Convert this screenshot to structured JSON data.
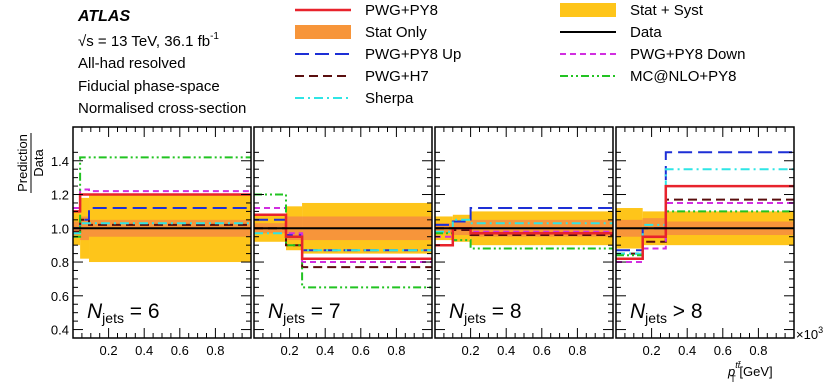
{
  "header": {
    "atlas": "ATLAS",
    "energy": "√s = 13 TeV, 36.1 fb",
    "energy_sup": "-1",
    "lines": [
      "All-had resolved",
      "Fiducial phase-space",
      "Normalised cross-section"
    ]
  },
  "legend": [
    {
      "label": "PWG+PY8",
      "style": "line",
      "color": "#e8232c",
      "dash": "solid",
      "width": 2.5
    },
    {
      "label": "Stat Only",
      "style": "box",
      "color": "#f7953a"
    },
    {
      "label": "PWG+PY8 Up",
      "style": "line",
      "color": "#1d2fd6",
      "dash": "longdash",
      "width": 2
    },
    {
      "label": "PWG+H7",
      "style": "line",
      "color": "#5a0e0e",
      "dash": "dash",
      "width": 2
    },
    {
      "label": "Sherpa",
      "style": "line",
      "color": "#2ee5e5",
      "dash": "dashdot",
      "width": 2
    },
    {
      "label": "Stat + Syst",
      "style": "box",
      "color": "#fec51a"
    },
    {
      "label": "Data",
      "style": "line",
      "color": "#000000",
      "dash": "solid",
      "width": 2
    },
    {
      "label": "PWG+PY8 Down",
      "style": "line",
      "color": "#d12ee0",
      "dash": "shortdash",
      "width": 2
    },
    {
      "label": "MC@NLO+PY8",
      "style": "line",
      "color": "#22c322",
      "dash": "dashdotdot",
      "width": 2
    }
  ],
  "chart_data": {
    "type": "line",
    "ylabel_top": "Prediction",
    "ylabel_bottom": "Data",
    "ylim": [
      0.35,
      1.6
    ],
    "yticks": [
      "0.4",
      "0.6",
      "0.8",
      "1.0",
      "1.2",
      "1.4"
    ],
    "xlim": [
      0,
      1.0
    ],
    "xticks": [
      "0.2",
      "0.4",
      "0.6",
      "0.8"
    ],
    "xscale_label": "×10",
    "xscale_sup": "3",
    "xlabel_main": "p",
    "xlabel_sub": "T",
    "xlabel_sup": "tt̄",
    "xlabel_unit": " [GeV]",
    "panels": [
      {
        "label_n": "N",
        "label_sub": "jets",
        "label_rest": " = 6",
        "edges": [
          0,
          0.04,
          0.09,
          1.0
        ],
        "stat": [
          [
            0.96,
            1.04
          ],
          [
            0.93,
            1.07
          ],
          [
            0.95,
            1.05
          ]
        ],
        "syst": [
          [
            0.9,
            1.1
          ],
          [
            0.82,
            1.18
          ],
          [
            0.8,
            1.2
          ]
        ],
        "series": [
          {
            "name": "PWG+PY8",
            "values": [
              1.1,
              1.2,
              1.2
            ]
          },
          {
            "name": "PWG+PY8 Up",
            "values": [
              1.0,
              1.05,
              1.12
            ]
          },
          {
            "name": "PWG+H7",
            "values": [
              0.98,
              1.05,
              1.02
            ]
          },
          {
            "name": "Sherpa",
            "values": [
              0.97,
              1.03,
              1.03
            ]
          },
          {
            "name": "PWG+PY8 Down",
            "values": [
              1.12,
              1.23,
              1.22
            ]
          },
          {
            "name": "MC@NLO+PY8",
            "values": [
              0.95,
              1.42,
              1.42
            ]
          },
          {
            "name": "Data",
            "values": [
              1.0,
              1.0,
              1.0
            ]
          }
        ]
      },
      {
        "label_n": "N",
        "label_sub": "jets",
        "label_rest": " = 7",
        "edges": [
          0,
          0.18,
          0.27,
          1.0
        ],
        "stat": [
          [
            0.97,
            1.03
          ],
          [
            0.93,
            1.07
          ],
          [
            0.93,
            1.07
          ]
        ],
        "syst": [
          [
            0.92,
            1.08
          ],
          [
            0.87,
            1.13
          ],
          [
            0.85,
            1.15
          ]
        ],
        "series": [
          {
            "name": "PWG+PY8",
            "values": [
              1.08,
              0.95,
              0.82
            ]
          },
          {
            "name": "PWG+PY8 Up",
            "values": [
              1.05,
              0.96,
              0.87
            ]
          },
          {
            "name": "PWG+H7",
            "values": [
              1.0,
              0.9,
              0.77
            ]
          },
          {
            "name": "Sherpa",
            "values": [
              0.97,
              0.95,
              0.87
            ]
          },
          {
            "name": "PWG+PY8 Down",
            "values": [
              1.12,
              0.97,
              0.8
            ]
          },
          {
            "name": "MC@NLO+PY8",
            "values": [
              1.2,
              0.9,
              0.65
            ]
          },
          {
            "name": "Data",
            "values": [
              1.0,
              1.0,
              1.0
            ]
          }
        ]
      },
      {
        "label_n": "N",
        "label_sub": "jets",
        "label_rest": " = 8",
        "edges": [
          0,
          0.1,
          0.2,
          1.0
        ],
        "stat": [
          [
            0.97,
            1.03
          ],
          [
            0.96,
            1.04
          ],
          [
            0.95,
            1.05
          ]
        ],
        "syst": [
          [
            0.93,
            1.07
          ],
          [
            0.92,
            1.08
          ],
          [
            0.9,
            1.1
          ]
        ],
        "series": [
          {
            "name": "PWG+PY8",
            "values": [
              0.9,
              1.0,
              0.97
            ]
          },
          {
            "name": "PWG+PY8 Up",
            "values": [
              1.02,
              1.04,
              1.12
            ]
          },
          {
            "name": "PWG+H7",
            "values": [
              1.0,
              0.99,
              0.96
            ]
          },
          {
            "name": "Sherpa",
            "values": [
              0.98,
              1.05,
              1.03
            ]
          },
          {
            "name": "PWG+PY8 Down",
            "values": [
              0.95,
              1.0,
              0.98
            ]
          },
          {
            "name": "MC@NLO+PY8",
            "values": [
              0.97,
              0.93,
              0.88
            ]
          },
          {
            "name": "Data",
            "values": [
              1.0,
              1.0,
              1.0
            ]
          }
        ]
      },
      {
        "label_n": "N",
        "label_sub": "jets",
        "label_rest": " > 8",
        "edges": [
          0,
          0.15,
          0.28,
          1.0
        ],
        "stat": [
          [
            0.95,
            1.05
          ],
          [
            0.94,
            1.06
          ],
          [
            0.96,
            1.04
          ]
        ],
        "syst": [
          [
            0.88,
            1.12
          ],
          [
            0.9,
            1.1
          ],
          [
            0.9,
            1.1
          ]
        ],
        "series": [
          {
            "name": "PWG+PY8",
            "values": [
              0.82,
              0.95,
              1.25
            ]
          },
          {
            "name": "PWG+PY8 Up",
            "values": [
              0.87,
              1.0,
              1.45
            ]
          },
          {
            "name": "PWG+H7",
            "values": [
              0.85,
              0.92,
              1.17
            ]
          },
          {
            "name": "Sherpa",
            "values": [
              0.85,
              1.02,
              1.35
            ]
          },
          {
            "name": "PWG+PY8 Down",
            "values": [
              0.8,
              0.88,
              1.15
            ]
          },
          {
            "name": "MC@NLO+PY8",
            "values": [
              0.84,
              0.95,
              1.1
            ]
          },
          {
            "name": "Data",
            "values": [
              1.0,
              1.0,
              1.0
            ]
          }
        ]
      }
    ]
  }
}
